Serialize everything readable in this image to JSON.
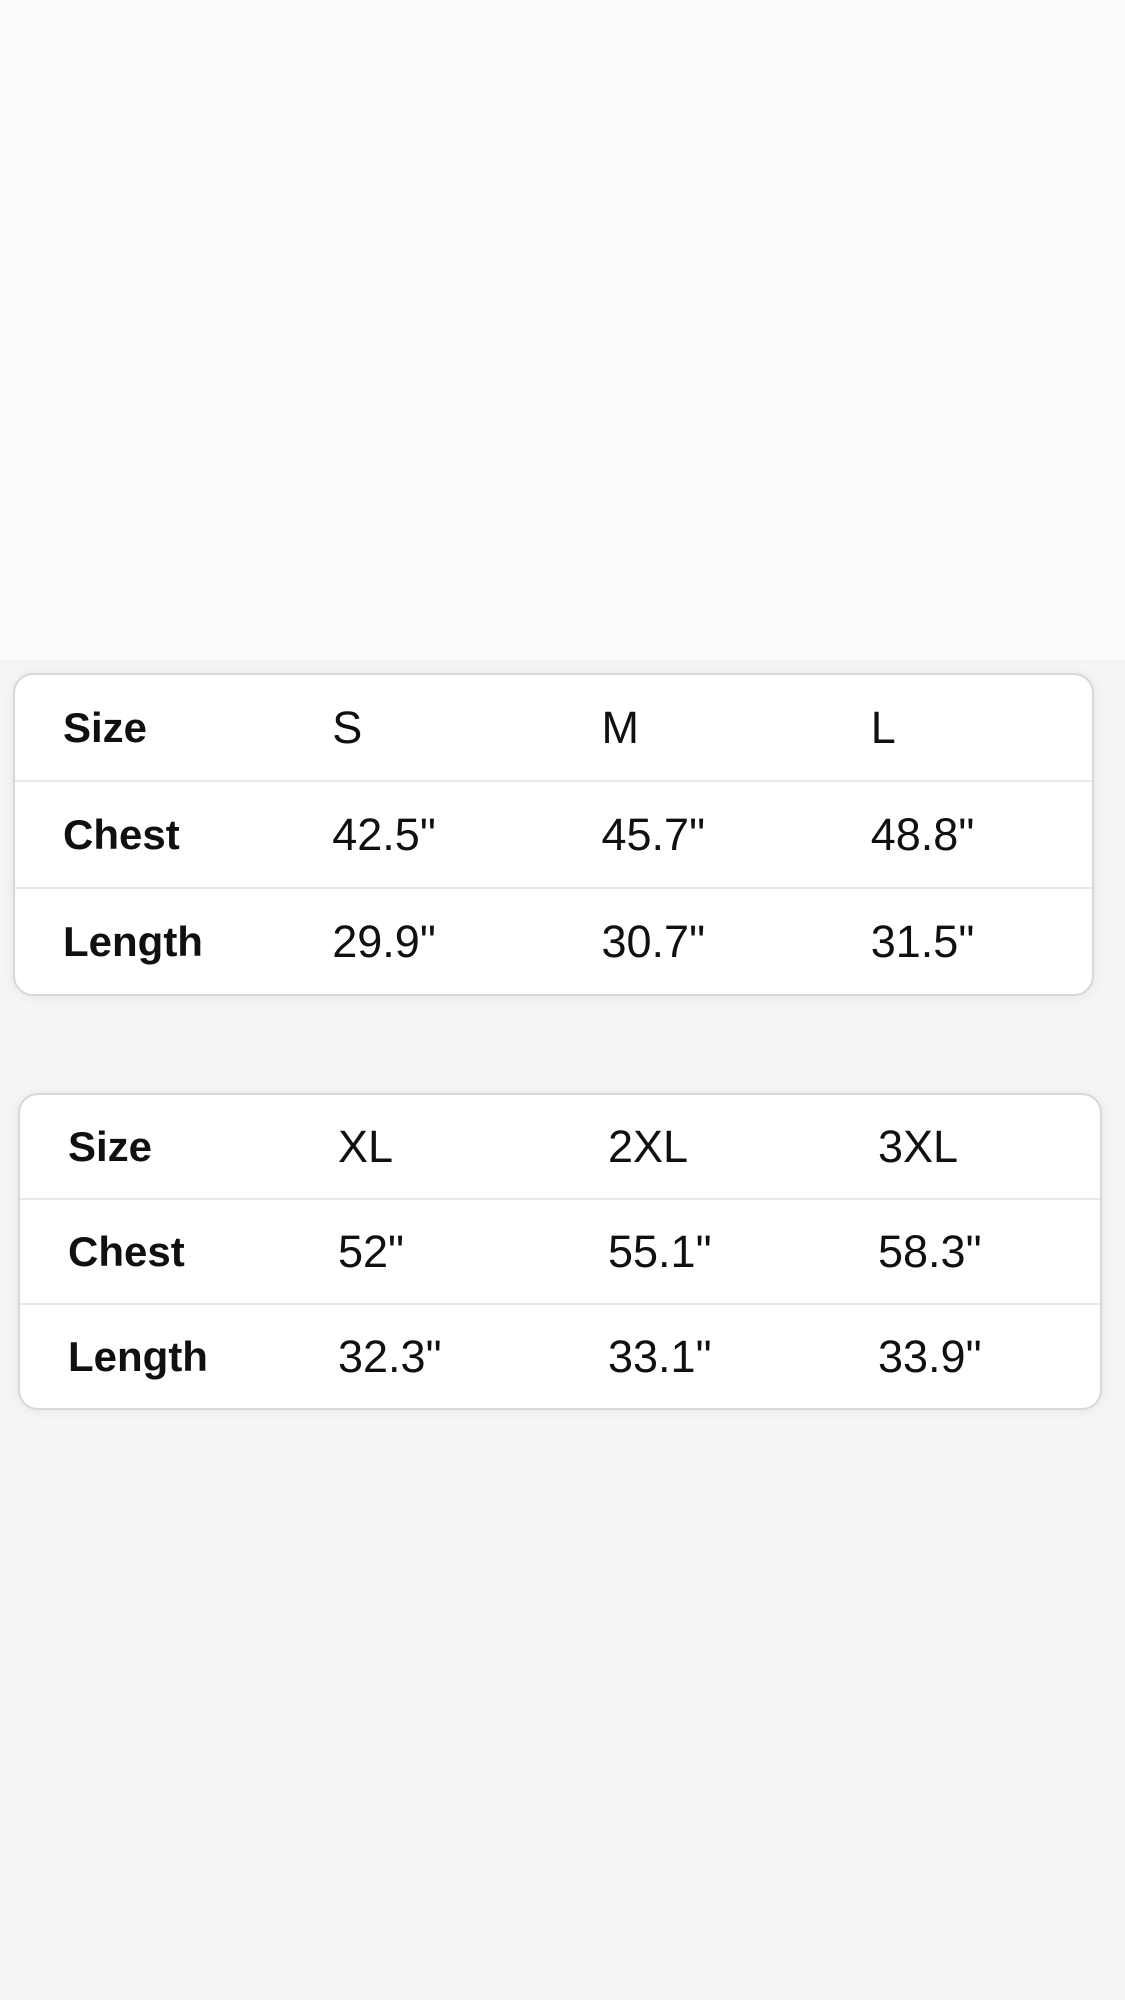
{
  "tables": [
    {
      "name": "size-table-s-m-l",
      "header": {
        "label": "Size",
        "columns": [
          "S",
          "M",
          "L"
        ]
      },
      "rows": [
        {
          "label": "Chest",
          "values": [
            "42.5\"",
            "45.7\"",
            "48.8\""
          ]
        },
        {
          "label": "Length",
          "values": [
            "29.9\"",
            "30.7\"",
            "31.5\""
          ]
        }
      ]
    },
    {
      "name": "size-table-xl-2xl-3xl",
      "header": {
        "label": "Size",
        "columns": [
          "XL",
          "2XL",
          "3XL"
        ]
      },
      "rows": [
        {
          "label": "Chest",
          "values": [
            "52\"",
            "55.1\"",
            "58.3\""
          ]
        },
        {
          "label": "Length",
          "values": [
            "32.3\"",
            "33.1\"",
            "33.9\""
          ]
        }
      ]
    }
  ],
  "colors": {
    "page_background_top": "#fbfbfb",
    "page_background_section": "#f4f5f5",
    "card_background": "#ffffff",
    "card_border": "#d6d7d8",
    "row_divider": "#e6e7e7",
    "text": "#0f1111"
  }
}
